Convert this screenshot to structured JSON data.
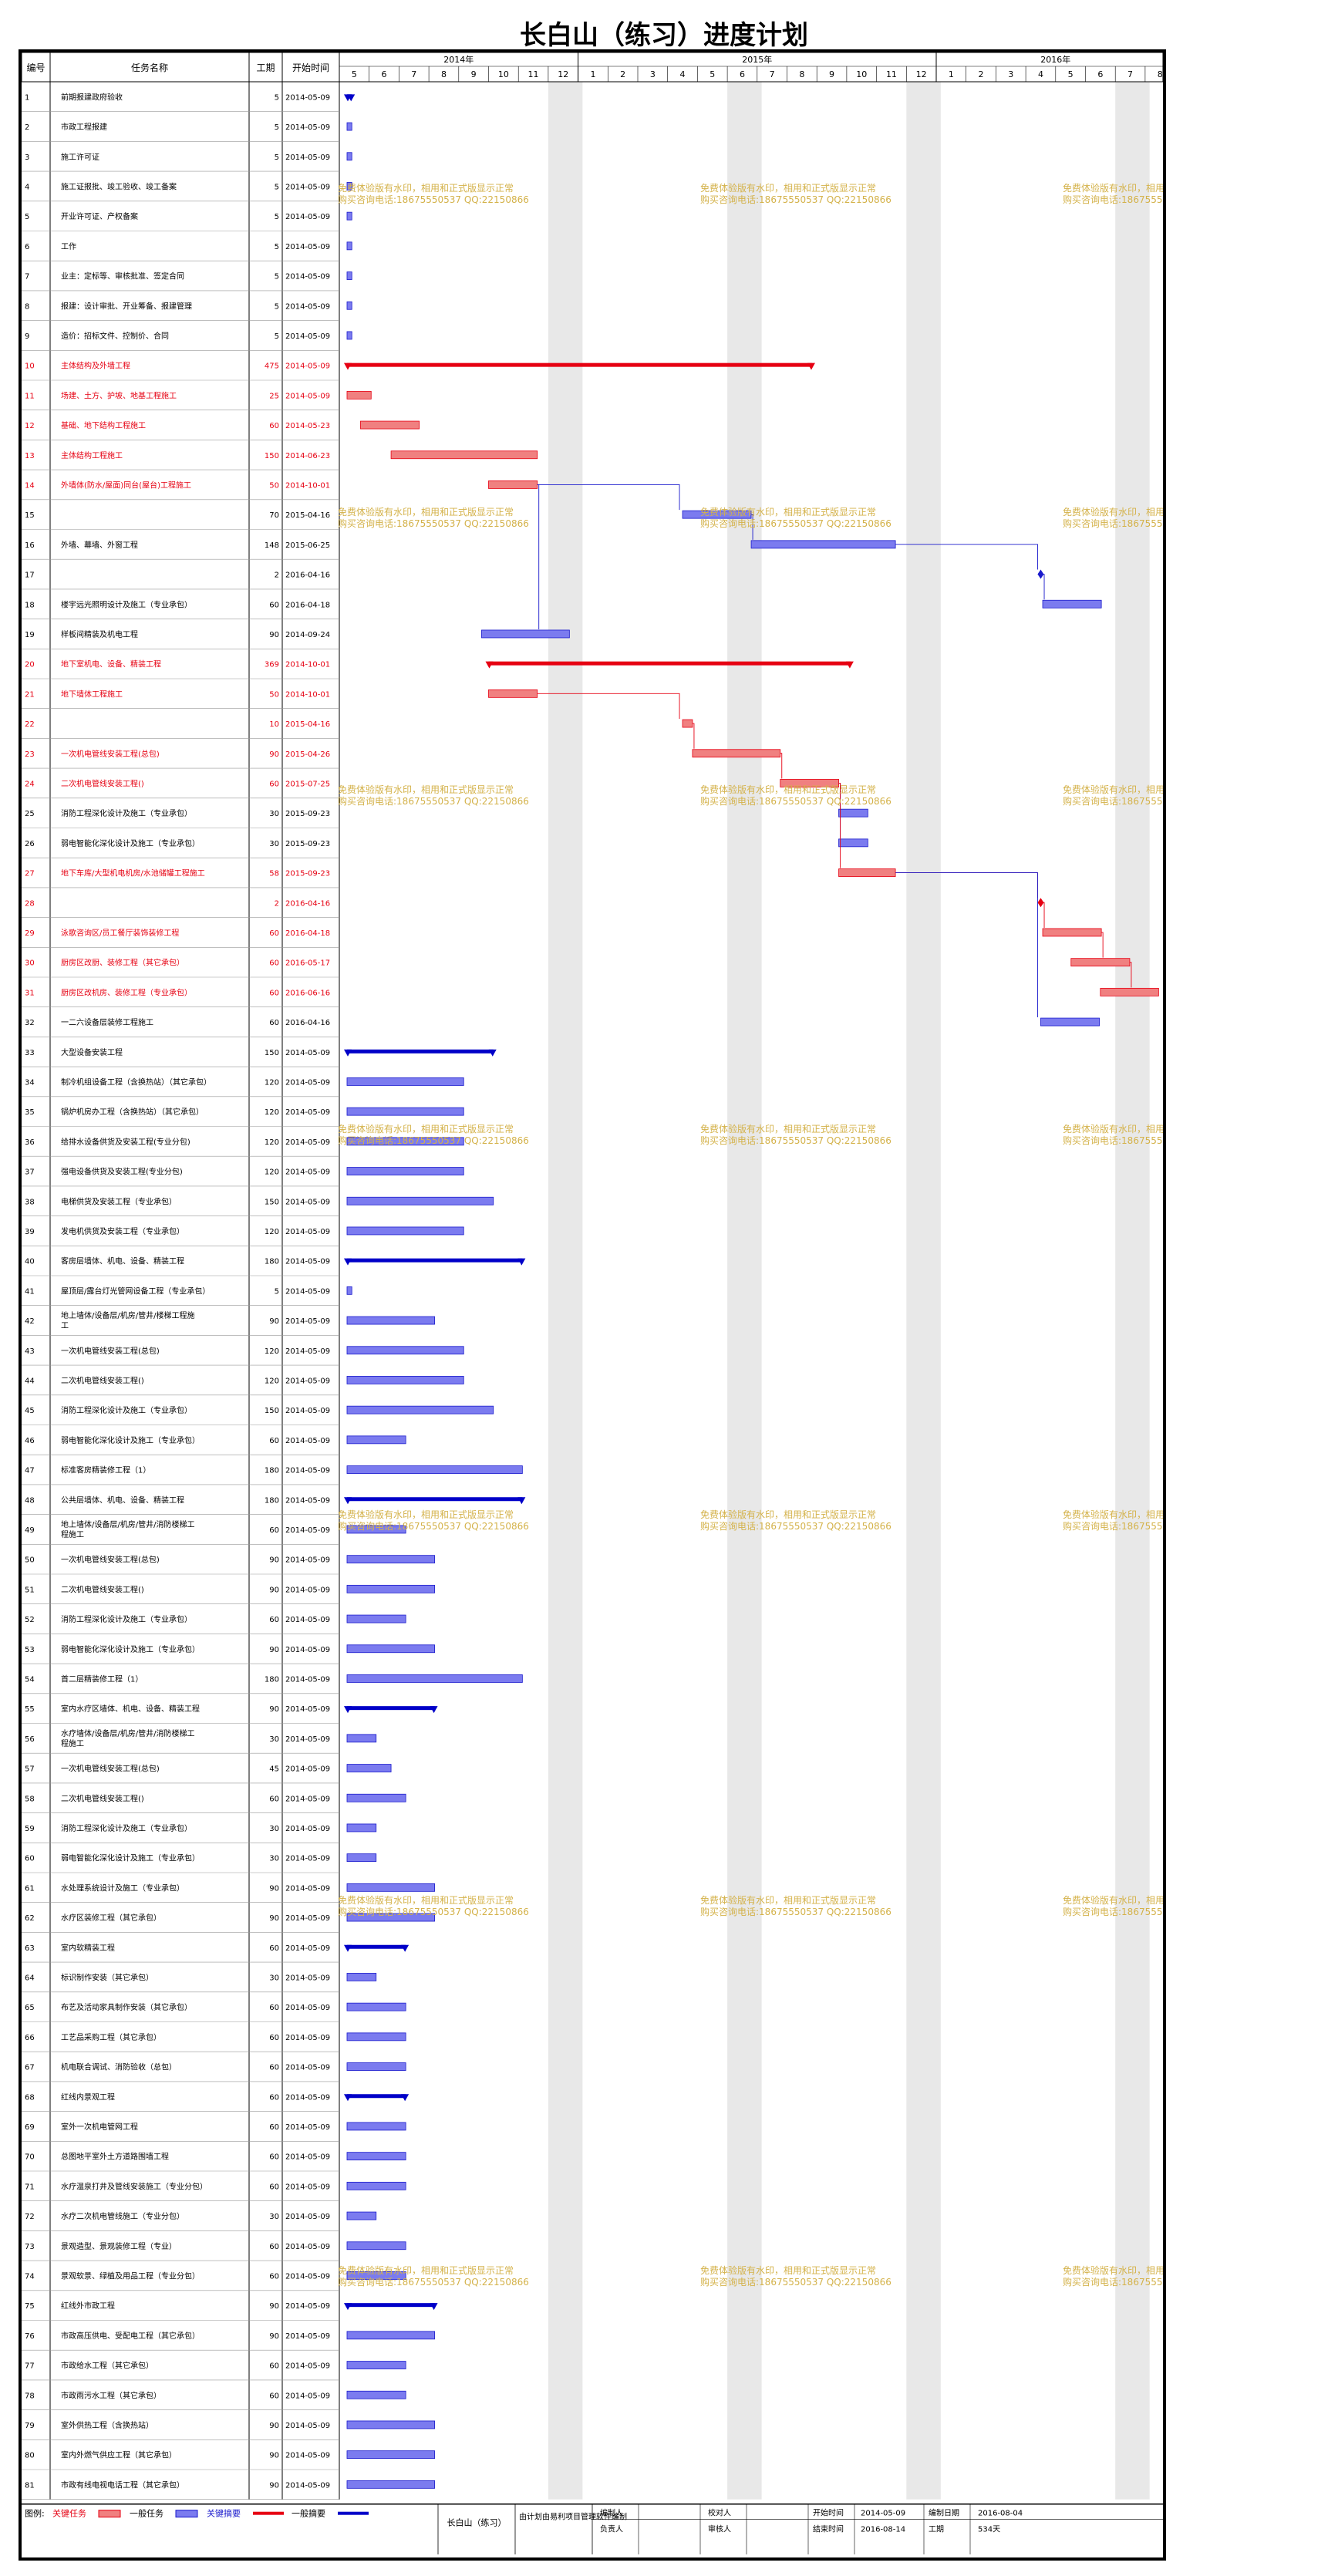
{
  "title": "长白山（练习）进度计划",
  "headers": {
    "id": "编号",
    "name": "任务名称",
    "dur": "工期",
    "start": "开始时间"
  },
  "years": [
    {
      "label": "2014年",
      "months": [
        "5",
        "6",
        "7",
        "8",
        "9",
        "10",
        "11",
        "12"
      ]
    },
    {
      "label": "2015年",
      "months": [
        "1",
        "2",
        "3",
        "4",
        "5",
        "6",
        "7",
        "8",
        "9",
        "10",
        "11",
        "12"
      ]
    },
    {
      "label": "2016年",
      "months": [
        "1",
        "2",
        "3",
        "4",
        "5",
        "6",
        "7",
        "8"
      ]
    }
  ],
  "colors": {
    "critical": "#e60012",
    "critical_bar": "#f08080",
    "normal_bar": "#7b7bef",
    "normal_line": "#1a1acc",
    "summary": "#0000c8",
    "watermark": "#d4b24a",
    "shade": "#e8e8e8"
  },
  "watermark": {
    "line1": "免费体验版有水印，相用和正式版显示正常",
    "line2": "购买咨询电话:18675550537 QQ:22150866"
  },
  "chart_data": {
    "type": "gantt",
    "time_axis": {
      "start": "2014-05-01",
      "end": "2016-08-31",
      "unit": "month"
    },
    "tasks": [
      {
        "id": "1",
        "name": "前期报建政府验收",
        "dur": "5",
        "start": "2014-05-09",
        "type": "summary"
      },
      {
        "id": "2",
        "name": "市政工程报建",
        "dur": "5",
        "start": "2014-05-09",
        "type": "normal"
      },
      {
        "id": "3",
        "name": "施工许可证",
        "dur": "5",
        "start": "2014-05-09",
        "type": "normal"
      },
      {
        "id": "4",
        "name": "施工证报批、竣工验收、竣工备案",
        "dur": "5",
        "start": "2014-05-09",
        "type": "normal"
      },
      {
        "id": "5",
        "name": "开业许可证、产权备案",
        "dur": "5",
        "start": "2014-05-09",
        "type": "normal"
      },
      {
        "id": "6",
        "name": "工作",
        "dur": "5",
        "start": "2014-05-09",
        "type": "normal"
      },
      {
        "id": "7",
        "name": "业主：定标等、审核批准、签定合同",
        "dur": "5",
        "start": "2014-05-09",
        "type": "normal"
      },
      {
        "id": "8",
        "name": "报建：设计审批、开业筹备、报建管理",
        "dur": "5",
        "start": "2014-05-09",
        "type": "normal"
      },
      {
        "id": "9",
        "name": "造价：招标文件、控制价、合同",
        "dur": "5",
        "start": "2014-05-09",
        "type": "normal"
      },
      {
        "id": "10",
        "name": "主体结构及外墙工程",
        "dur": "475",
        "start": "2014-05-09",
        "type": "critical_summary"
      },
      {
        "id": "11",
        "name": "场建、土方、护坡、地基工程施工",
        "dur": "25",
        "start": "2014-05-09",
        "type": "critical"
      },
      {
        "id": "12",
        "name": "基础、地下结构工程施工",
        "dur": "60",
        "start": "2014-05-23",
        "type": "critical"
      },
      {
        "id": "13",
        "name": "主体结构工程施工",
        "dur": "150",
        "start": "2014-06-23",
        "type": "critical"
      },
      {
        "id": "14",
        "name": "外墙体(防水/屋面)同台(屋台)工程施工",
        "dur": "50",
        "start": "2014-10-01",
        "type": "critical"
      },
      {
        "id": "15",
        "name": "",
        "dur": "70",
        "start": "2015-04-16",
        "type": "normal"
      },
      {
        "id": "16",
        "name": "外墙、幕墙、外窗工程",
        "dur": "148",
        "start": "2015-06-25",
        "type": "normal"
      },
      {
        "id": "17",
        "name": "",
        "dur": "2",
        "start": "2016-04-16",
        "type": "milestone"
      },
      {
        "id": "18",
        "name": "楼宇远光照明设计及施工（专业承包）",
        "dur": "60",
        "start": "2016-04-18",
        "type": "normal"
      },
      {
        "id": "19",
        "name": "样板间精装及机电工程",
        "dur": "90",
        "start": "2014-09-24",
        "type": "normal"
      },
      {
        "id": "20",
        "name": "地下室机电、设备、精装工程",
        "dur": "369",
        "start": "2014-10-01",
        "type": "critical_summary"
      },
      {
        "id": "21",
        "name": "地下墙体工程施工",
        "dur": "50",
        "start": "2014-10-01",
        "type": "critical"
      },
      {
        "id": "22",
        "name": "",
        "dur": "10",
        "start": "2015-04-16",
        "type": "critical"
      },
      {
        "id": "23",
        "name": "一次机电管线安装工程(总包)",
        "dur": "90",
        "start": "2015-04-26",
        "type": "critical"
      },
      {
        "id": "24",
        "name": "二次机电管线安装工程()",
        "dur": "60",
        "start": "2015-07-25",
        "type": "critical"
      },
      {
        "id": "25",
        "name": "消防工程深化设计及施工（专业承包）",
        "dur": "30",
        "start": "2015-09-23",
        "type": "normal"
      },
      {
        "id": "26",
        "name": "弱电智能化深化设计及施工（专业承包）",
        "dur": "30",
        "start": "2015-09-23",
        "type": "normal"
      },
      {
        "id": "27",
        "name": "地下车库/大型机电机房/水池储罐工程施工",
        "dur": "58",
        "start": "2015-09-23",
        "type": "critical"
      },
      {
        "id": "28",
        "name": "",
        "dur": "2",
        "start": "2016-04-16",
        "type": "critical_milestone"
      },
      {
        "id": "29",
        "name": "泳歌咨询区/员工餐厅装饰装修工程",
        "dur": "60",
        "start": "2016-04-18",
        "type": "critical"
      },
      {
        "id": "30",
        "name": "厨房区改厨、装修工程（其它承包）",
        "dur": "60",
        "start": "2016-05-17",
        "type": "critical"
      },
      {
        "id": "31",
        "name": "厨房区改机房、装修工程（专业承包）",
        "dur": "60",
        "start": "2016-06-16",
        "type": "critical"
      },
      {
        "id": "32",
        "name": "一二六设备层装修工程施工",
        "dur": "60",
        "start": "2016-04-16",
        "type": "normal"
      },
      {
        "id": "33",
        "name": "大型设备安装工程",
        "dur": "150",
        "start": "2014-05-09",
        "type": "summary"
      },
      {
        "id": "34",
        "name": "制冷机组设备工程（含换热站）（其它承包）",
        "dur": "120",
        "start": "2014-05-09",
        "type": "normal"
      },
      {
        "id": "35",
        "name": "锅炉机房办工程（含换热站）（其它承包）",
        "dur": "120",
        "start": "2014-05-09",
        "type": "normal"
      },
      {
        "id": "36",
        "name": "给排水设备供货及安装工程(专业分包)",
        "dur": "120",
        "start": "2014-05-09",
        "type": "normal"
      },
      {
        "id": "37",
        "name": "强电设备供货及安装工程(专业分包)",
        "dur": "120",
        "start": "2014-05-09",
        "type": "normal"
      },
      {
        "id": "38",
        "name": "电梯供货及安装工程（专业承包）",
        "dur": "150",
        "start": "2014-05-09",
        "type": "normal"
      },
      {
        "id": "39",
        "name": "发电机供货及安装工程（专业承包）",
        "dur": "120",
        "start": "2014-05-09",
        "type": "normal"
      },
      {
        "id": "40",
        "name": "客房层墙体、机电、设备、精装工程",
        "dur": "180",
        "start": "2014-05-09",
        "type": "summary"
      },
      {
        "id": "41",
        "name": "屋顶层/露台灯光管网设备工程（专业承包）",
        "dur": "5",
        "start": "2014-05-09",
        "type": "normal"
      },
      {
        "id": "42",
        "name": "地上墙体/设备层/机房/管井/楼梯工程施工",
        "dur": "90",
        "start": "2014-05-09",
        "type": "normal"
      },
      {
        "id": "43",
        "name": "一次机电管线安装工程(总包)",
        "dur": "120",
        "start": "2014-05-09",
        "type": "normal"
      },
      {
        "id": "44",
        "name": "二次机电管线安装工程()",
        "dur": "120",
        "start": "2014-05-09",
        "type": "normal"
      },
      {
        "id": "45",
        "name": "消防工程深化设计及施工（专业承包）",
        "dur": "150",
        "start": "2014-05-09",
        "type": "normal"
      },
      {
        "id": "46",
        "name": "弱电智能化深化设计及施工（专业承包）",
        "dur": "60",
        "start": "2014-05-09",
        "type": "normal"
      },
      {
        "id": "47",
        "name": "标准客房精装修工程（1）",
        "dur": "180",
        "start": "2014-05-09",
        "type": "normal"
      },
      {
        "id": "48",
        "name": "公共层墙体、机电、设备、精装工程",
        "dur": "180",
        "start": "2014-05-09",
        "type": "summary"
      },
      {
        "id": "49",
        "name": "地上墙体/设备层/机房/管井/消防楼梯工程施工",
        "dur": "60",
        "start": "2014-05-09",
        "type": "normal"
      },
      {
        "id": "50",
        "name": "一次机电管线安装工程(总包)",
        "dur": "90",
        "start": "2014-05-09",
        "type": "normal"
      },
      {
        "id": "51",
        "name": "二次机电管线安装工程()",
        "dur": "90",
        "start": "2014-05-09",
        "type": "normal"
      },
      {
        "id": "52",
        "name": "消防工程深化设计及施工（专业承包）",
        "dur": "60",
        "start": "2014-05-09",
        "type": "normal"
      },
      {
        "id": "53",
        "name": "弱电智能化深化设计及施工（专业承包）",
        "dur": "90",
        "start": "2014-05-09",
        "type": "normal"
      },
      {
        "id": "54",
        "name": "首二层精装修工程（1）",
        "dur": "180",
        "start": "2014-05-09",
        "type": "normal"
      },
      {
        "id": "55",
        "name": "室内水疗区墙体、机电、设备、精装工程",
        "dur": "90",
        "start": "2014-05-09",
        "type": "summary"
      },
      {
        "id": "56",
        "name": "水疗墙体/设备层/机房/管井/消防楼梯工程施工",
        "dur": "30",
        "start": "2014-05-09",
        "type": "normal"
      },
      {
        "id": "57",
        "name": "一次机电管线安装工程(总包)",
        "dur": "45",
        "start": "2014-05-09",
        "type": "normal"
      },
      {
        "id": "58",
        "name": "二次机电管线安装工程()",
        "dur": "60",
        "start": "2014-05-09",
        "type": "normal"
      },
      {
        "id": "59",
        "name": "消防工程深化设计及施工（专业承包）",
        "dur": "30",
        "start": "2014-05-09",
        "type": "normal"
      },
      {
        "id": "60",
        "name": "弱电智能化深化设计及施工（专业承包）",
        "dur": "30",
        "start": "2014-05-09",
        "type": "normal"
      },
      {
        "id": "61",
        "name": "水处理系统设计及施工（专业承包）",
        "dur": "90",
        "start": "2014-05-09",
        "type": "normal"
      },
      {
        "id": "62",
        "name": "水疗区装修工程（其它承包）",
        "dur": "90",
        "start": "2014-05-09",
        "type": "normal"
      },
      {
        "id": "63",
        "name": "室内软精装工程",
        "dur": "60",
        "start": "2014-05-09",
        "type": "summary"
      },
      {
        "id": "64",
        "name": "标识制作安装（其它承包）",
        "dur": "30",
        "start": "2014-05-09",
        "type": "normal"
      },
      {
        "id": "65",
        "name": "布艺及活动家具制作安装（其它承包）",
        "dur": "60",
        "start": "2014-05-09",
        "type": "normal"
      },
      {
        "id": "66",
        "name": "工艺品采购工程（其它承包）",
        "dur": "60",
        "start": "2014-05-09",
        "type": "normal"
      },
      {
        "id": "67",
        "name": "机电联合调试、消防验收（总包）",
        "dur": "60",
        "start": "2014-05-09",
        "type": "normal"
      },
      {
        "id": "68",
        "name": "红线内景观工程",
        "dur": "60",
        "start": "2014-05-09",
        "type": "summary"
      },
      {
        "id": "69",
        "name": "室外一次机电管网工程",
        "dur": "60",
        "start": "2014-05-09",
        "type": "normal"
      },
      {
        "id": "70",
        "name": "总图地平室外土方道路围墙工程",
        "dur": "60",
        "start": "2014-05-09",
        "type": "normal"
      },
      {
        "id": "71",
        "name": "水疗温泉打井及管线安装施工（专业分包）",
        "dur": "60",
        "start": "2014-05-09",
        "type": "normal"
      },
      {
        "id": "72",
        "name": "水疗二次机电管线施工（专业分包）",
        "dur": "30",
        "start": "2014-05-09",
        "type": "normal"
      },
      {
        "id": "73",
        "name": "景观造型、景观装修工程（专业）",
        "dur": "60",
        "start": "2014-05-09",
        "type": "normal"
      },
      {
        "id": "74",
        "name": "景观软景、绿植及用品工程（专业分包）",
        "dur": "60",
        "start": "2014-05-09",
        "type": "normal"
      },
      {
        "id": "75",
        "name": "红线外市政工程",
        "dur": "90",
        "start": "2014-05-09",
        "type": "summary"
      },
      {
        "id": "76",
        "name": "市政高压供电、受配电工程（其它承包）",
        "dur": "90",
        "start": "2014-05-09",
        "type": "normal"
      },
      {
        "id": "77",
        "name": "市政给水工程（其它承包）",
        "dur": "60",
        "start": "2014-05-09",
        "type": "normal"
      },
      {
        "id": "78",
        "name": "市政雨污水工程（其它承包）",
        "dur": "60",
        "start": "2014-05-09",
        "type": "normal"
      },
      {
        "id": "79",
        "name": "室外供热工程（含换热站）",
        "dur": "90",
        "start": "2014-05-09",
        "type": "normal"
      },
      {
        "id": "80",
        "name": "室内外燃气供应工程（其它承包）",
        "dur": "90",
        "start": "2014-05-09",
        "type": "normal"
      },
      {
        "id": "81",
        "name": "市政有线电视电话工程（其它承包）",
        "dur": "90",
        "start": "2014-05-09",
        "type": "normal"
      }
    ],
    "links": [
      [
        "14",
        "15"
      ],
      [
        "15",
        "16"
      ],
      [
        "16",
        "17"
      ],
      [
        "17",
        "18"
      ],
      [
        "14",
        "19"
      ],
      [
        "21",
        "22"
      ],
      [
        "22",
        "23"
      ],
      [
        "23",
        "24"
      ],
      [
        "24",
        "25"
      ],
      [
        "24",
        "26"
      ],
      [
        "24",
        "27"
      ],
      [
        "27",
        "28"
      ],
      [
        "28",
        "29"
      ],
      [
        "29",
        "30"
      ],
      [
        "30",
        "31"
      ],
      [
        "27",
        "32"
      ]
    ]
  },
  "legend": {
    "label": "图例:",
    "critical": "关键任务",
    "normal": "一般任务",
    "critical_summary": "关键摘要",
    "normal_summary": "一般摘要"
  },
  "footer": {
    "project": "长白山（练习）",
    "software": "由计划由易利项目管理软件编制",
    "editor_label": "编制人",
    "checker_label": "校对人",
    "owner_label": "负责人",
    "auditor_label": "审核人",
    "start_label": "开始时间",
    "start_value": "2014-05-09",
    "edit_date_label": "编制日期",
    "edit_date_value": "2016-08-04",
    "end_label": "结束时间",
    "end_value": "2016-08-14",
    "dur_label": "工期",
    "dur_value": "534天"
  }
}
